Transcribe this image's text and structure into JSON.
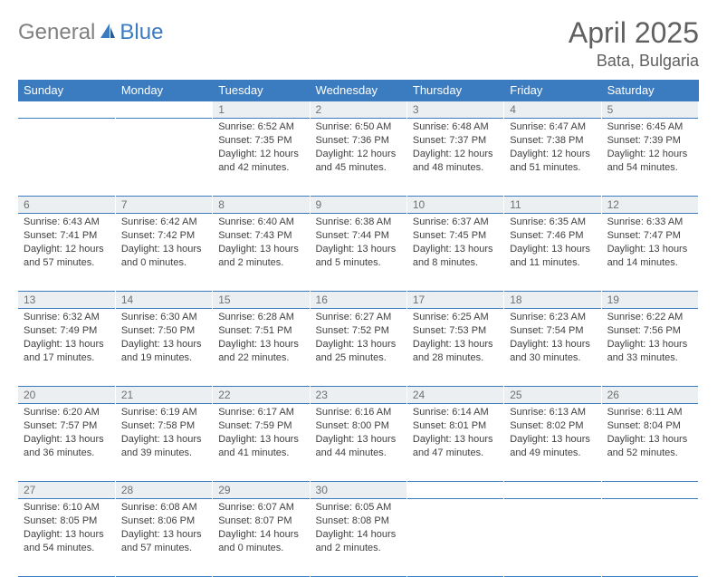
{
  "logo": {
    "part1": "General",
    "part2": "Blue"
  },
  "title": "April 2025",
  "location": "Bata, Bulgaria",
  "colors": {
    "header_bg": "#3b7bbf",
    "header_text": "#ffffff",
    "daynum_bg": "#eceff1",
    "body_text": "#404040",
    "title_text": "#606060",
    "border": "#3b7bbf"
  },
  "dayNames": [
    "Sunday",
    "Monday",
    "Tuesday",
    "Wednesday",
    "Thursday",
    "Friday",
    "Saturday"
  ],
  "weeks": [
    [
      null,
      null,
      {
        "d": "1",
        "sr": "6:52 AM",
        "ss": "7:35 PM",
        "dl": "12 hours and 42 minutes."
      },
      {
        "d": "2",
        "sr": "6:50 AM",
        "ss": "7:36 PM",
        "dl": "12 hours and 45 minutes."
      },
      {
        "d": "3",
        "sr": "6:48 AM",
        "ss": "7:37 PM",
        "dl": "12 hours and 48 minutes."
      },
      {
        "d": "4",
        "sr": "6:47 AM",
        "ss": "7:38 PM",
        "dl": "12 hours and 51 minutes."
      },
      {
        "d": "5",
        "sr": "6:45 AM",
        "ss": "7:39 PM",
        "dl": "12 hours and 54 minutes."
      }
    ],
    [
      {
        "d": "6",
        "sr": "6:43 AM",
        "ss": "7:41 PM",
        "dl": "12 hours and 57 minutes."
      },
      {
        "d": "7",
        "sr": "6:42 AM",
        "ss": "7:42 PM",
        "dl": "13 hours and 0 minutes."
      },
      {
        "d": "8",
        "sr": "6:40 AM",
        "ss": "7:43 PM",
        "dl": "13 hours and 2 minutes."
      },
      {
        "d": "9",
        "sr": "6:38 AM",
        "ss": "7:44 PM",
        "dl": "13 hours and 5 minutes."
      },
      {
        "d": "10",
        "sr": "6:37 AM",
        "ss": "7:45 PM",
        "dl": "13 hours and 8 minutes."
      },
      {
        "d": "11",
        "sr": "6:35 AM",
        "ss": "7:46 PM",
        "dl": "13 hours and 11 minutes."
      },
      {
        "d": "12",
        "sr": "6:33 AM",
        "ss": "7:47 PM",
        "dl": "13 hours and 14 minutes."
      }
    ],
    [
      {
        "d": "13",
        "sr": "6:32 AM",
        "ss": "7:49 PM",
        "dl": "13 hours and 17 minutes."
      },
      {
        "d": "14",
        "sr": "6:30 AM",
        "ss": "7:50 PM",
        "dl": "13 hours and 19 minutes."
      },
      {
        "d": "15",
        "sr": "6:28 AM",
        "ss": "7:51 PM",
        "dl": "13 hours and 22 minutes."
      },
      {
        "d": "16",
        "sr": "6:27 AM",
        "ss": "7:52 PM",
        "dl": "13 hours and 25 minutes."
      },
      {
        "d": "17",
        "sr": "6:25 AM",
        "ss": "7:53 PM",
        "dl": "13 hours and 28 minutes."
      },
      {
        "d": "18",
        "sr": "6:23 AM",
        "ss": "7:54 PM",
        "dl": "13 hours and 30 minutes."
      },
      {
        "d": "19",
        "sr": "6:22 AM",
        "ss": "7:56 PM",
        "dl": "13 hours and 33 minutes."
      }
    ],
    [
      {
        "d": "20",
        "sr": "6:20 AM",
        "ss": "7:57 PM",
        "dl": "13 hours and 36 minutes."
      },
      {
        "d": "21",
        "sr": "6:19 AM",
        "ss": "7:58 PM",
        "dl": "13 hours and 39 minutes."
      },
      {
        "d": "22",
        "sr": "6:17 AM",
        "ss": "7:59 PM",
        "dl": "13 hours and 41 minutes."
      },
      {
        "d": "23",
        "sr": "6:16 AM",
        "ss": "8:00 PM",
        "dl": "13 hours and 44 minutes."
      },
      {
        "d": "24",
        "sr": "6:14 AM",
        "ss": "8:01 PM",
        "dl": "13 hours and 47 minutes."
      },
      {
        "d": "25",
        "sr": "6:13 AM",
        "ss": "8:02 PM",
        "dl": "13 hours and 49 minutes."
      },
      {
        "d": "26",
        "sr": "6:11 AM",
        "ss": "8:04 PM",
        "dl": "13 hours and 52 minutes."
      }
    ],
    [
      {
        "d": "27",
        "sr": "6:10 AM",
        "ss": "8:05 PM",
        "dl": "13 hours and 54 minutes."
      },
      {
        "d": "28",
        "sr": "6:08 AM",
        "ss": "8:06 PM",
        "dl": "13 hours and 57 minutes."
      },
      {
        "d": "29",
        "sr": "6:07 AM",
        "ss": "8:07 PM",
        "dl": "14 hours and 0 minutes."
      },
      {
        "d": "30",
        "sr": "6:05 AM",
        "ss": "8:08 PM",
        "dl": "14 hours and 2 minutes."
      },
      null,
      null,
      null
    ]
  ],
  "labels": {
    "sunrise": "Sunrise:",
    "sunset": "Sunset:",
    "daylight": "Daylight:"
  }
}
